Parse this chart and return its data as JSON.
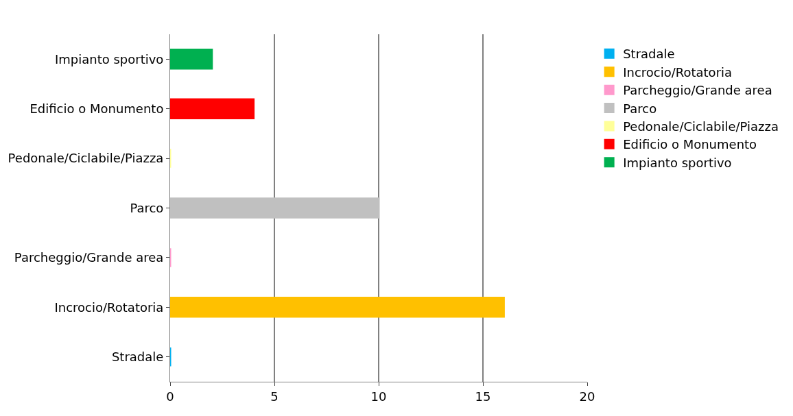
{
  "chart_data": {
    "type": "bar",
    "orientation": "horizontal",
    "categories": [
      "Impianto sportivo",
      "Edificio o Monumento",
      "Pedonale/Ciclabile/Piazza",
      "Parco",
      "Parcheggio/Grande area",
      "Incrocio/Rotatoria",
      "Stradale"
    ],
    "series": [
      {
        "name": "Stradale",
        "color": "#00b0f0",
        "values": [
          null,
          null,
          null,
          null,
          null,
          null,
          0
        ]
      },
      {
        "name": "Incrocio/Rotatoria",
        "color": "#ffc000",
        "values": [
          null,
          null,
          null,
          null,
          null,
          16,
          null
        ]
      },
      {
        "name": "Parcheggio/Grande area",
        "color": "#ff99cc",
        "values": [
          null,
          null,
          null,
          null,
          0,
          null,
          null
        ]
      },
      {
        "name": "Parco",
        "color": "#c0c0c0",
        "values": [
          null,
          null,
          null,
          10,
          null,
          null,
          null
        ]
      },
      {
        "name": "Pedonale/Ciclabile/Piazza",
        "color": "#ffff99",
        "values": [
          null,
          null,
          0,
          null,
          null,
          null,
          null
        ]
      },
      {
        "name": "Edificio o Monumento",
        "color": "#ff0000",
        "values": [
          null,
          4,
          null,
          null,
          null,
          null,
          null
        ]
      },
      {
        "name": "Impianto sportivo",
        "color": "#00b050",
        "values": [
          2,
          null,
          null,
          null,
          null,
          null,
          null
        ]
      }
    ],
    "xlim": [
      0,
      20
    ],
    "xticks": [
      0,
      5,
      10,
      15,
      20
    ],
    "grid": "x",
    "legend": "right"
  }
}
